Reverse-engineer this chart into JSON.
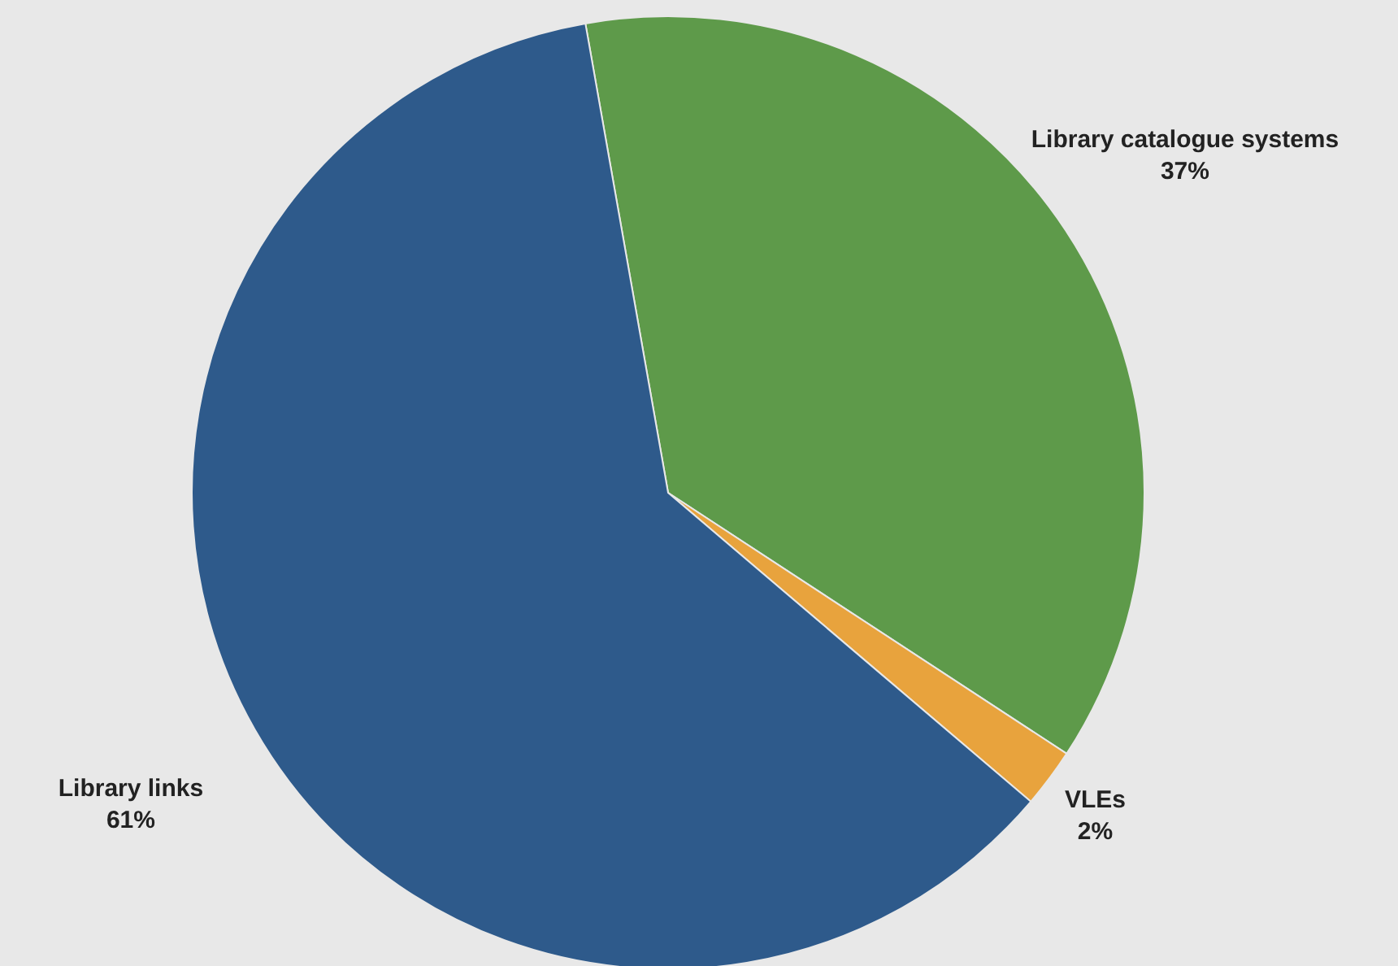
{
  "chart_data": {
    "type": "pie",
    "categories": [
      "Library catalogue systems",
      "VLEs",
      "Library links"
    ],
    "values": [
      37,
      2,
      61
    ],
    "colors": [
      "#5e9a4a",
      "#e8a33d",
      "#2e5a8b"
    ],
    "value_labels": [
      "37%",
      "2%",
      "61%"
    ]
  }
}
